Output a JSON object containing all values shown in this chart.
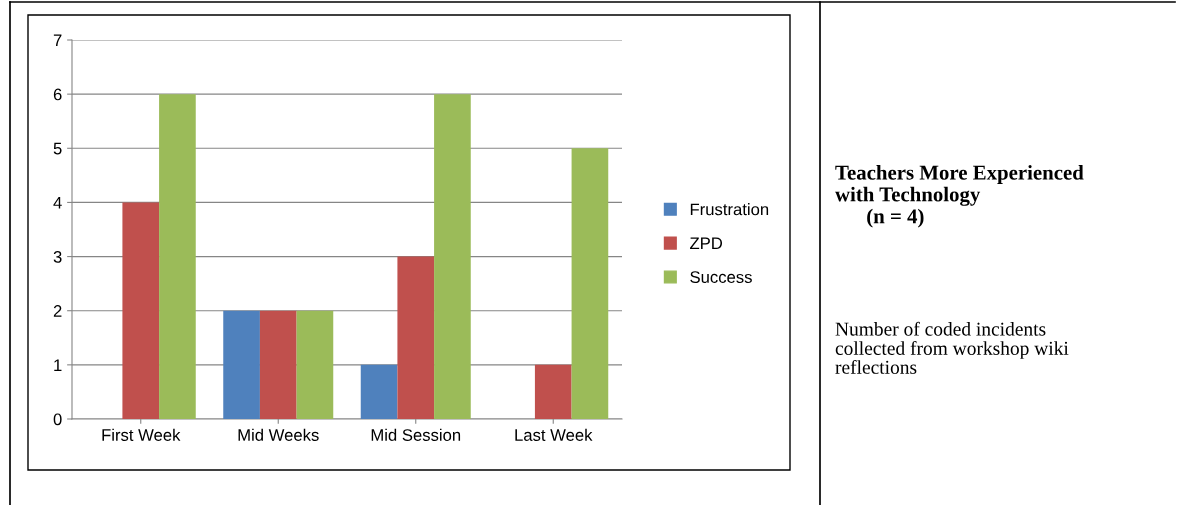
{
  "chart_data": {
    "type": "bar",
    "title": "Teachers More Experienced\nwith Technology\n      (n = 4)",
    "annotations": [
      "Number of coded incidents\ncollected from workshop wiki\nreflections"
    ],
    "categories": [
      "First Week",
      "Mid Weeks",
      "Mid Session",
      "Last Week"
    ],
    "series": [
      {
        "name": "Frustration",
        "color": "#4f81bd",
        "values": [
          0,
          2,
          1,
          0
        ]
      },
      {
        "name": "ZPD",
        "color": "#c0504d",
        "values": [
          4,
          2,
          3,
          1
        ]
      },
      {
        "name": "Success",
        "color": "#9bbb59",
        "values": [
          6,
          2,
          6,
          5
        ]
      }
    ],
    "ylim": [
      0,
      7
    ],
    "yticks": [
      0,
      1,
      2,
      3,
      4,
      5,
      6,
      7
    ],
    "grid": "y",
    "legend": "right"
  }
}
